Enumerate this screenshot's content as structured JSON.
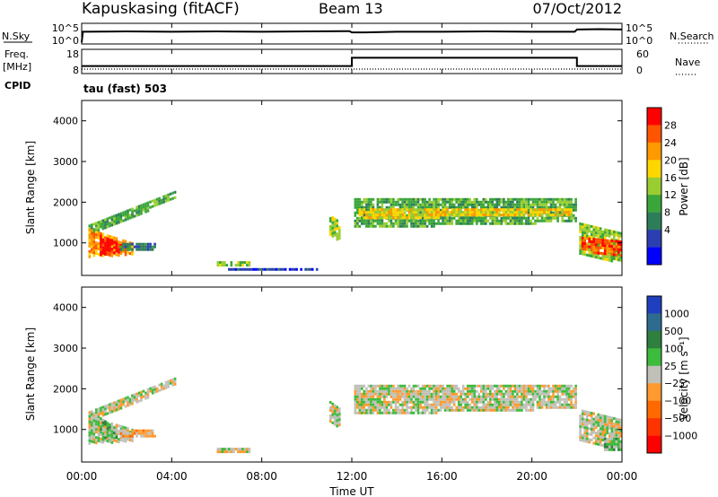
{
  "header": {
    "radar": "Kapuskasing (fitACF)",
    "beam": "Beam 13",
    "date": "07/Oct/2012"
  },
  "labels": {
    "nsky": "N.Sky",
    "nsearch": "N.Search",
    "freq": "Freq.",
    "freq_unit": "[MHz]",
    "nave": "Nave",
    "cpid": "CPID",
    "cpid_text": "tau (fast) 503",
    "nsky_ticks": [
      "10^5",
      "10^0"
    ],
    "nsearch_ticks": [
      "10^5",
      "10^0"
    ],
    "freq_ticks": [
      "18",
      "8"
    ],
    "nave_ticks": [
      "60",
      "0"
    ]
  },
  "colors": {
    "power": [
      "#0000ff",
      "#2b3fb0",
      "#2e7d5a",
      "#3aa63a",
      "#9acd32",
      "#ffd700",
      "#ff9900",
      "#ff5500",
      "#ff0000"
    ],
    "velocity": [
      "#1f3fbf",
      "#2e6b8f",
      "#2f7f3f",
      "#3dbb3d",
      "#c0c0b8",
      "#ff9a30",
      "#ff6a00",
      "#ff3300",
      "#ff0000"
    ]
  },
  "chart_data": [
    {
      "type": "line",
      "name": "noise-strip",
      "x_ticks": [
        "00:00",
        "04:00",
        "08:00",
        "12:00",
        "16:00",
        "20:00",
        "00:00"
      ],
      "series": [
        {
          "name": "N.Sky",
          "x_hours": [
            0,
            0.05,
            2,
            4,
            6,
            8,
            10,
            11.9,
            12,
            12.6,
            14,
            16,
            18,
            20,
            21.9,
            22,
            23,
            24
          ],
          "values": [
            0.2,
            3.5,
            3.6,
            3.5,
            3.6,
            3.5,
            3.6,
            3.7,
            3.3,
            3.3,
            3.5,
            3.5,
            3.6,
            3.5,
            3.5,
            4.2,
            4.3,
            4.2
          ]
        },
        {
          "name": "N.Search",
          "x_hours": [
            0,
            24
          ],
          "values": [
            0,
            0
          ]
        }
      ]
    },
    {
      "type": "line",
      "name": "freq-strip",
      "series": [
        {
          "name": "Freq.",
          "x_hours": [
            0,
            12,
            12,
            22,
            22,
            24
          ],
          "values": [
            10.2,
            10.2,
            14.8,
            14.8,
            10.2,
            10.2
          ]
        },
        {
          "name": "Nave",
          "x_hours": [
            0,
            24
          ],
          "values": [
            3,
            3
          ]
        }
      ]
    },
    {
      "type": "heatmap",
      "name": "power-panel",
      "ylabel": "Slant Range [km]",
      "y_ticks": [
        1000,
        2000,
        3000,
        4000
      ],
      "ylim": [
        200,
        4500
      ],
      "colorbar_label": "Power [dB]",
      "colorbar_ticks": [
        "28",
        "24",
        "20",
        "16",
        "12",
        "8",
        "4"
      ],
      "regions": [
        {
          "t": [
            0.3,
            4.2
          ],
          "r0": [
            1150,
            2100
          ],
          "r1": [
            1450,
            2300
          ],
          "level": 3
        },
        {
          "t": [
            0.3,
            2.3
          ],
          "r0": [
            650,
            700
          ],
          "r1": [
            1350,
            1000
          ],
          "level": 6
        },
        {
          "t": [
            0.8,
            1.8
          ],
          "r0": [
            700,
            760
          ],
          "r1": [
            1200,
            950
          ],
          "level": 8
        },
        {
          "t": [
            1.7,
            3.3
          ],
          "r0": [
            780,
            780
          ],
          "r1": [
            1000,
            1000
          ],
          "level": 2
        },
        {
          "t": [
            6.0,
            7.5
          ],
          "r0": [
            450,
            450
          ],
          "r1": [
            550,
            550
          ],
          "level": 4
        },
        {
          "t": [
            6.5,
            10.5
          ],
          "r0": [
            300,
            300
          ],
          "r1": [
            380,
            380
          ],
          "level": 1
        },
        {
          "t": [
            11.0,
            11.5
          ],
          "r0": [
            1200,
            950
          ],
          "r1": [
            1700,
            1500
          ],
          "level": 4
        },
        {
          "t": [
            12.1,
            22.0
          ],
          "r0": [
            1350,
            1500
          ],
          "r1": [
            2100,
            2100
          ],
          "level": 3
        },
        {
          "t": [
            12.3,
            21.8
          ],
          "r0": [
            1600,
            1650
          ],
          "r1": [
            1850,
            1850
          ],
          "level": 5
        },
        {
          "t": [
            22.1,
            24.0
          ],
          "r0": [
            700,
            500
          ],
          "r1": [
            1500,
            1250
          ],
          "level": 4
        },
        {
          "t": [
            22.2,
            24.0
          ],
          "r0": [
            800,
            650
          ],
          "r1": [
            1150,
            1050
          ],
          "level": 7
        }
      ]
    },
    {
      "type": "heatmap",
      "name": "velocity-panel",
      "ylabel": "Slant Range [km]",
      "y_ticks": [
        1000,
        2000,
        3000,
        4000
      ],
      "ylim": [
        200,
        4500
      ],
      "colorbar_label": "Velocity [m s⁻¹]",
      "colorbar_ticks": [
        "1000",
        "500",
        "100",
        "25",
        "−25",
        "−100",
        "−500",
        "−1000"
      ],
      "regions": [
        {
          "t": [
            0.3,
            4.2
          ],
          "r0": [
            1150,
            2100
          ],
          "r1": [
            1450,
            2300
          ],
          "level": 4
        },
        {
          "t": [
            0.3,
            2.3
          ],
          "r0": [
            650,
            700
          ],
          "r1": [
            1350,
            1000
          ],
          "level": 4
        },
        {
          "t": [
            0.8,
            1.6
          ],
          "r0": [
            750,
            800
          ],
          "r1": [
            1300,
            1000
          ],
          "level": 3
        },
        {
          "t": [
            1.7,
            3.3
          ],
          "r0": [
            780,
            780
          ],
          "r1": [
            1000,
            1000
          ],
          "level": 5
        },
        {
          "t": [
            6.0,
            7.5
          ],
          "r0": [
            450,
            450
          ],
          "r1": [
            550,
            550
          ],
          "level": 4
        },
        {
          "t": [
            11.0,
            11.5
          ],
          "r0": [
            1200,
            950
          ],
          "r1": [
            1700,
            1500
          ],
          "level": 4
        },
        {
          "t": [
            12.1,
            22.0
          ],
          "r0": [
            1350,
            1500
          ],
          "r1": [
            2100,
            2100
          ],
          "level": 4
        },
        {
          "t": [
            22.1,
            24.0
          ],
          "r0": [
            700,
            500
          ],
          "r1": [
            1500,
            1250
          ],
          "level": 4
        },
        {
          "t": [
            23.2,
            24.0
          ],
          "r0": [
            500,
            500
          ],
          "r1": [
            800,
            800
          ],
          "level": 3
        }
      ]
    }
  ],
  "x_axis": {
    "label": "Time UT",
    "ticks": [
      "00:00",
      "04:00",
      "08:00",
      "12:00",
      "16:00",
      "20:00",
      "00:00"
    ]
  }
}
